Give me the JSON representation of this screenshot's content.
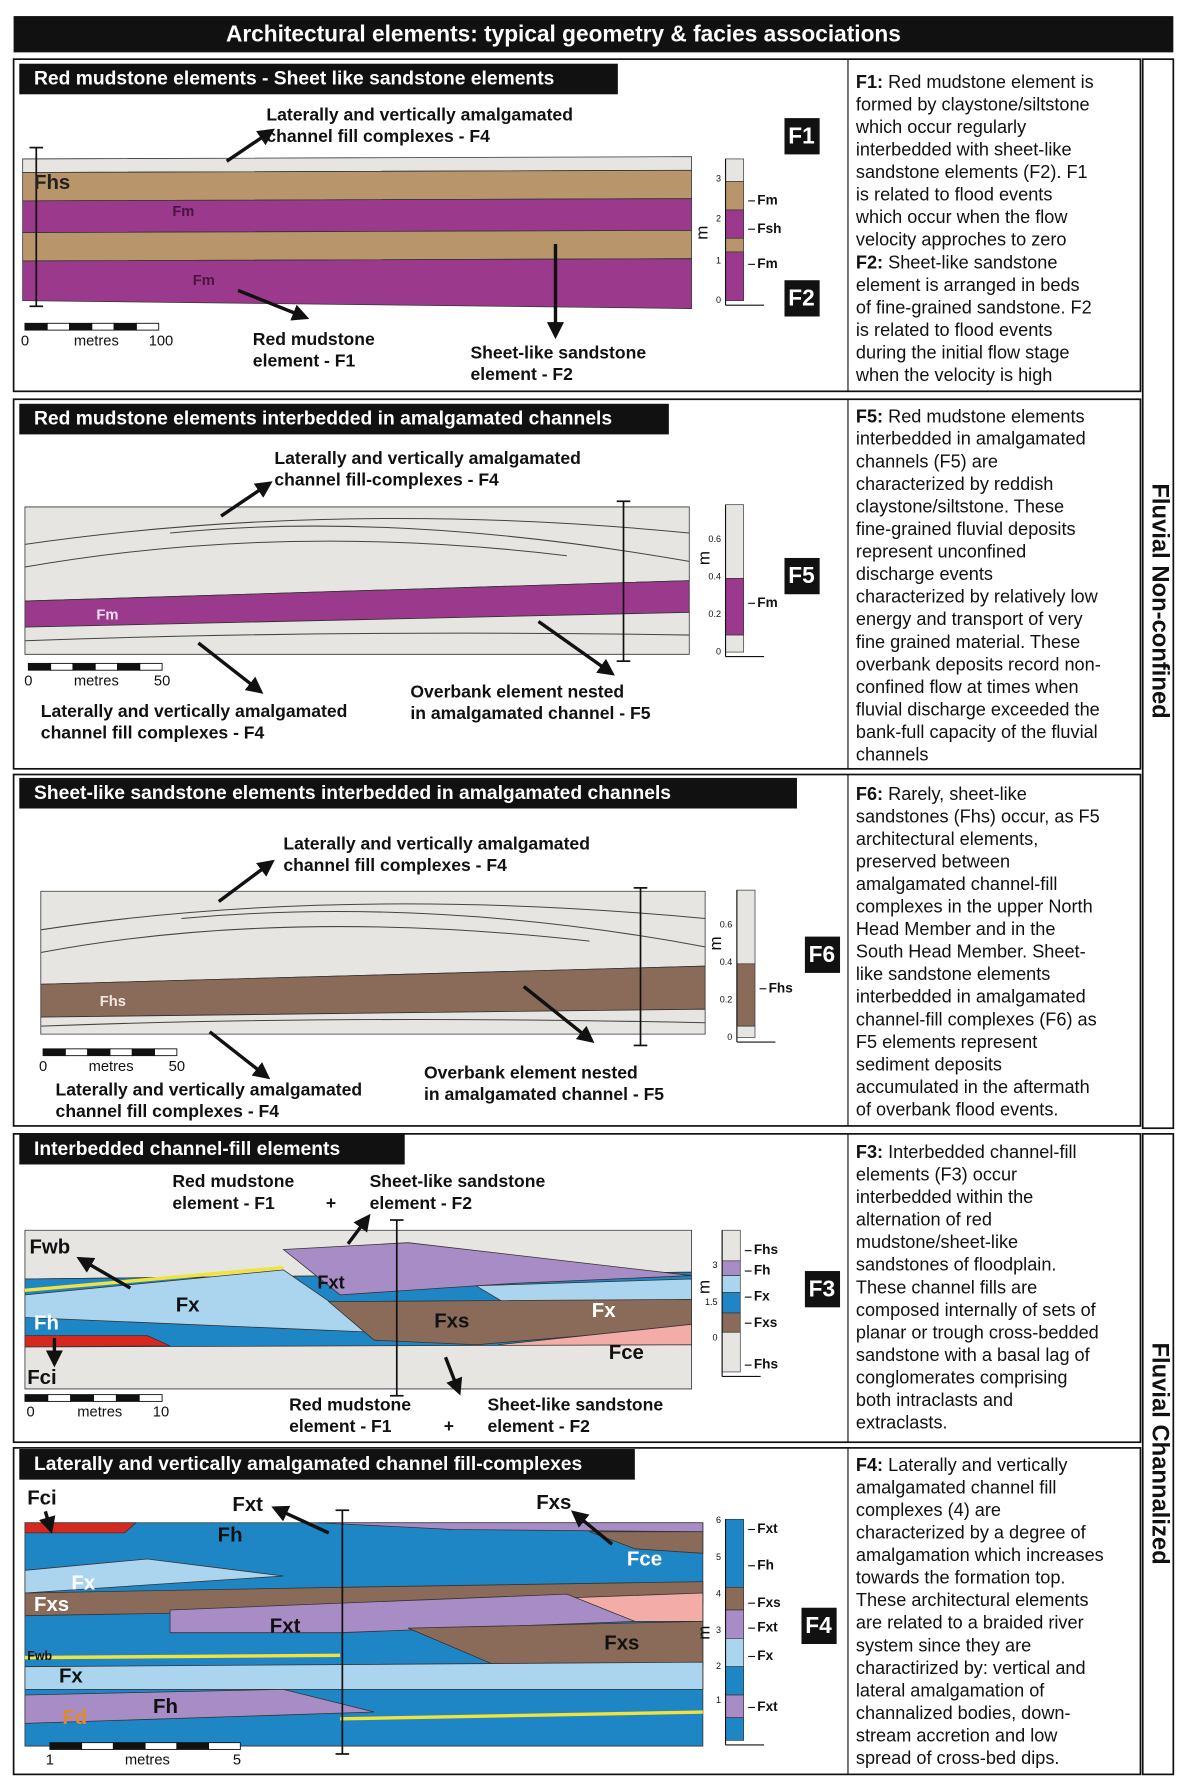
{
  "header": {
    "title": "Architectural elements: typical geometry & facies associations"
  },
  "side_labels": [
    "Fluvial Non-confined",
    "Fluvial Channalized"
  ],
  "panels": [
    {
      "title": "Red mudstone elements - Sheet like sandstone elements",
      "annotations": [
        {
          "lines": [
            "Laterally and vertically amalgamated",
            "channel fill complexes - F4"
          ]
        },
        {
          "lines": [
            "Red mudstone",
            "element - F1"
          ]
        },
        {
          "lines": [
            "Sheet-like sandstone",
            "element - F2"
          ]
        }
      ],
      "facies_labels": [
        "Fhs",
        "Fm",
        "Fm"
      ],
      "scale": [
        "0",
        "metres",
        "100"
      ],
      "log": {
        "unit": "m",
        "ticks": [
          "0",
          "1",
          "2",
          "3"
        ],
        "facies": [
          "Fm",
          "Fsh",
          "Fm"
        ]
      },
      "codes": [
        "F1",
        "F2"
      ],
      "description": [
        "F1: Red mudstone element is",
        "formed by claystone/siltstone",
        "which occur regularly",
        "interbedded with sheet-like",
        "sandstone elements (F2). F1",
        "is related to flood events",
        "which occur  when the flow",
        "velocity approches to zero",
        "F2: Sheet-like sandstone",
        "element is arranged in  beds",
        "of fine-grained sandstone. F2",
        "is related to flood events",
        "during the initial flow stage",
        "when the velocity is high"
      ]
    },
    {
      "title": "Red mudstone elements interbedded in amalgamated channels",
      "annotations": [
        {
          "lines": [
            "Laterally and vertically amalgamated",
            "channel fill-complexes - F4"
          ]
        },
        {
          "lines": [
            "Laterally and vertically amalgamated",
            "channel fill complexes - F4"
          ]
        },
        {
          "lines": [
            "Overbank element nested",
            "in amalgamated channel - F5"
          ]
        }
      ],
      "facies_labels": [
        "Fm"
      ],
      "scale": [
        "0",
        "metres",
        "50"
      ],
      "log": {
        "unit": "m",
        "ticks": [
          "0",
          "0.2",
          "0.4",
          "0.6"
        ],
        "facies": [
          "Fm"
        ]
      },
      "codes": [
        "F5"
      ],
      "description": [
        "F5: Red mudstone elements",
        "interbedded in amalgamated",
        "channels (F5) are",
        "characterized by reddish",
        "claystone/siltstone. These",
        "fine-grained fluvial deposits",
        "represent unconfined",
        "discharge events",
        "characterized by relatively low",
        "energy and transport of very",
        "fine grained material. These",
        "overbank deposits record non-",
        "confined flow at times when",
        "fluvial discharge exceeded the",
        "bank-full capacity of the fluvial",
        "channels"
      ]
    },
    {
      "title": "Sheet-like sandstone elements interbedded in amalgamated channels",
      "annotations": [
        {
          "lines": [
            "Laterally and vertically amalgamated",
            "channel fill complexes - F4"
          ]
        },
        {
          "lines": [
            "Laterally and vertically amalgamated",
            "channel fill complexes - F4"
          ]
        },
        {
          "lines": [
            "Overbank element nested",
            "in amalgamated channel - F5"
          ]
        }
      ],
      "facies_labels": [
        "Fhs"
      ],
      "scale": [
        "0",
        "metres",
        "50"
      ],
      "log": {
        "unit": "m",
        "ticks": [
          "0",
          "0.2",
          "0.4",
          "0.6"
        ],
        "facies": [
          "Fhs"
        ]
      },
      "codes": [
        "F6"
      ],
      "description": [
        "F6: Rarely, sheet-like",
        "sandstones (Fhs) occur, as F5",
        "architectural elements,",
        "preserved between",
        "amalgamated channel-fill",
        "complexes in the upper North",
        "Head Member and in the",
        "South Head Member. Sheet-",
        "like sandstone elements",
        "interbedded in amalgamated",
        "channel-fill complexes (F6) as",
        "F5 elements represent",
        "sediment deposits",
        "accumulated in the aftermath",
        "of overbank flood events."
      ]
    },
    {
      "title": "Interbedded channel-fill elements",
      "annotations": [
        {
          "lines": [
            "Red mudstone",
            "element - F1"
          ]
        },
        {
          "lines": [
            "+"
          ]
        },
        {
          "lines": [
            "Sheet-like sandstone",
            "element - F2"
          ]
        },
        {
          "lines": [
            "Red mudstone",
            "element - F1"
          ]
        },
        {
          "lines": [
            "+"
          ]
        },
        {
          "lines": [
            "Sheet-like sandstone",
            "element - F2"
          ]
        }
      ],
      "facies_labels": [
        "Fwb",
        "Fxt",
        "Fx",
        "Fh",
        "Fxs",
        "Fx",
        "Fce",
        "Fci"
      ],
      "scale": [
        "0",
        "metres",
        "10"
      ],
      "log": {
        "unit": "m",
        "ticks": [
          "0",
          "1.5",
          "3"
        ],
        "facies": [
          "Fhs",
          "Fh",
          "Fx",
          "Fxs",
          "Fhs"
        ]
      },
      "codes": [
        "F3"
      ],
      "description": [
        "F3: Interbedded channel-fill",
        "elements (F3) occur",
        "interbedded within the",
        "alternation of red",
        "mudstone/sheet-like",
        "sandstones of floodplain.",
        "These channel fills  are",
        "composed internally of sets of",
        "planar or trough cross-bedded",
        "sandstone with a basal lag of",
        "conglomerates comprising",
        "both intraclasts and",
        "extraclasts."
      ]
    },
    {
      "title": "Laterally and vertically amalgamated channel fill-complexes",
      "annotations": [],
      "facies_labels": [
        "Fci",
        "Fxt",
        "Fxs",
        "Fh",
        "Fce",
        "Fx",
        "Fxs",
        "Fxt",
        "Fxs",
        "Fwb",
        "Fx",
        "Fd",
        "Fh"
      ],
      "scale": [
        "1",
        "metres",
        "5"
      ],
      "log": {
        "unit": "m",
        "ticks": [
          "1",
          "2",
          "3",
          "4",
          "5",
          "6"
        ],
        "facies": [
          "Fxt",
          "Fh",
          "Fxs",
          "Fxt",
          "Fx",
          "Fxt"
        ]
      },
      "codes": [
        "F4"
      ],
      "description": [
        "F4: Laterally and vertically",
        "amalgamated channel fill",
        "complexes (4) are",
        "characterized by a degree of",
        "amalgamation which increases",
        "towards the formation top.",
        "These architectural elements",
        "are related to a braided river",
        "system since they are",
        "charactirized by: vertical and",
        "lateral amalgamation of",
        "channalized bodies, down-",
        "stream accretion and low",
        "spread of  cross-bed dips."
      ]
    }
  ]
}
